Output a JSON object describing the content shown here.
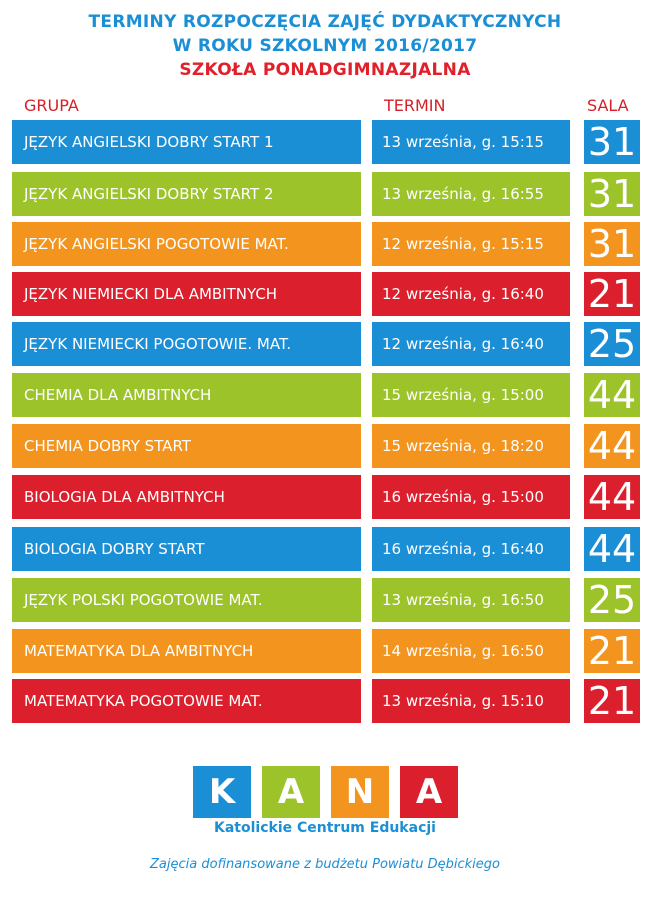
{
  "header": {
    "line1": "TERMINY ROZPOCZĘCIA ZAJĘĆ DYDAKTYCZNYCH",
    "line2": "W ROKU SZKOLNYM 2016/2017",
    "line3": "SZKOŁA PONADGIMNAZJALNA"
  },
  "columns": {
    "group": "GRUPA",
    "term": "TERMIN",
    "room": "SALA"
  },
  "colors": {
    "blue": "#1b8fd6",
    "green": "#9cc32a",
    "orange": "#f3941f",
    "red": "#dc1f2c"
  },
  "rows": [
    {
      "group": "JĘZYK ANGIELSKI DOBRY START 1",
      "term": "13 września, g. 15:15",
      "room": "31",
      "color": "blue"
    },
    {
      "group": "JĘZYK ANGIELSKI DOBRY START 2",
      "term": "13 września, g. 16:55",
      "room": "31",
      "color": "green"
    },
    {
      "group": "JĘZYK ANGIELSKI POGOTOWIE MAT.",
      "term": "12 września, g. 15:15",
      "room": "31",
      "color": "orange"
    },
    {
      "group": "JĘZYK NIEMIECKI DLA AMBITNYCH",
      "term": "12 września, g. 16:40",
      "room": "21",
      "color": "red"
    },
    {
      "group": "JĘZYK NIEMIECKI POGOTOWIE. MAT.",
      "term": "12 września, g. 16:40",
      "room": "25",
      "color": "blue"
    },
    {
      "group": "CHEMIA DLA AMBITNYCH",
      "term": "15 września, g. 15:00",
      "room": "44",
      "color": "green"
    },
    {
      "group": "CHEMIA DOBRY START",
      "term": "15 września, g. 18:20",
      "room": "44",
      "color": "orange"
    },
    {
      "group": "BIOLOGIA DLA AMBITNYCH",
      "term": "16 września, g. 15:00",
      "room": "44",
      "color": "red"
    },
    {
      "group": "BIOLOGIA DOBRY START",
      "term": "16 września, g. 16:40",
      "room": "44",
      "color": "blue"
    },
    {
      "group": "JĘZYK POLSKI POGOTOWIE MAT.",
      "term": "13 września, g. 16:50",
      "room": "25",
      "color": "green"
    },
    {
      "group": "MATEMATYKA DLA AMBITNYCH",
      "term": "14 września, g. 16:50",
      "room": "21",
      "color": "orange"
    },
    {
      "group": "MATEMATYKA POGOTOWIE MAT.",
      "term": "13 września, g. 15:10",
      "room": "21",
      "color": "red"
    }
  ],
  "logo": {
    "letters": [
      {
        "char": "K",
        "color": "blue"
      },
      {
        "char": "A",
        "color": "green"
      },
      {
        "char": "N",
        "color": "orange"
      },
      {
        "char": "A",
        "color": "red"
      }
    ],
    "subtitle": "Katolickie Centrum Edukacji"
  },
  "footer": "Zajęcia dofinansowane z budżetu Powiatu Dębickiego"
}
